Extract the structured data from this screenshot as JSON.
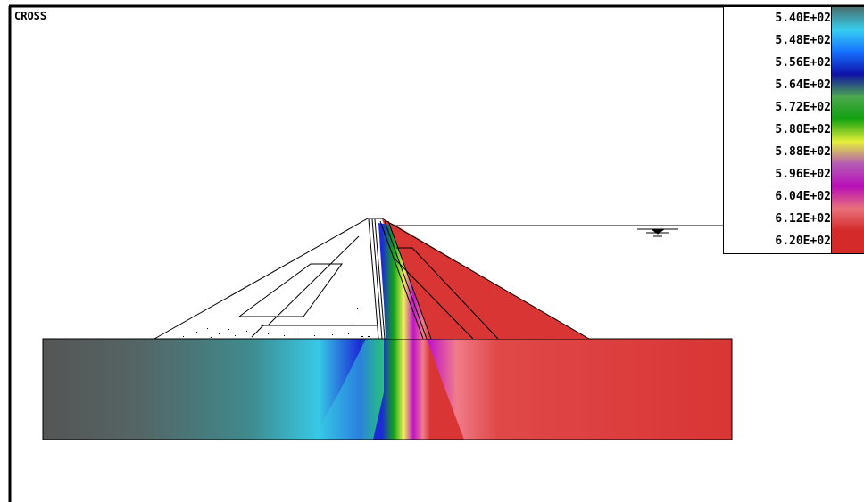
{
  "view": {
    "title": "CROSS"
  },
  "legend": {
    "labels": [
      "5.40E+02",
      "5.48E+02",
      "5.56E+02",
      "5.64E+02",
      "5.72E+02",
      "5.80E+02",
      "5.88E+02",
      "5.96E+02",
      "6.04E+02",
      "6.12E+02",
      "6.20E+02"
    ],
    "colors": [
      "#4a6e6e",
      "#37d0ef",
      "#1570ff",
      "#0f0fa6",
      "#4ea850",
      "#0fa00f",
      "#e5f03a",
      "#b45ab4",
      "#b80fb8",
      "#e8707a",
      "#d42a2a"
    ]
  },
  "colors": {
    "low": "#555555",
    "mid_low": "#37c9e6",
    "blue": "#1c2bd6",
    "green": "#13a713",
    "yellow": "#f2f05a",
    "magenta": "#c014c9",
    "pink": "#f07c8a",
    "high": "#d93535"
  }
}
